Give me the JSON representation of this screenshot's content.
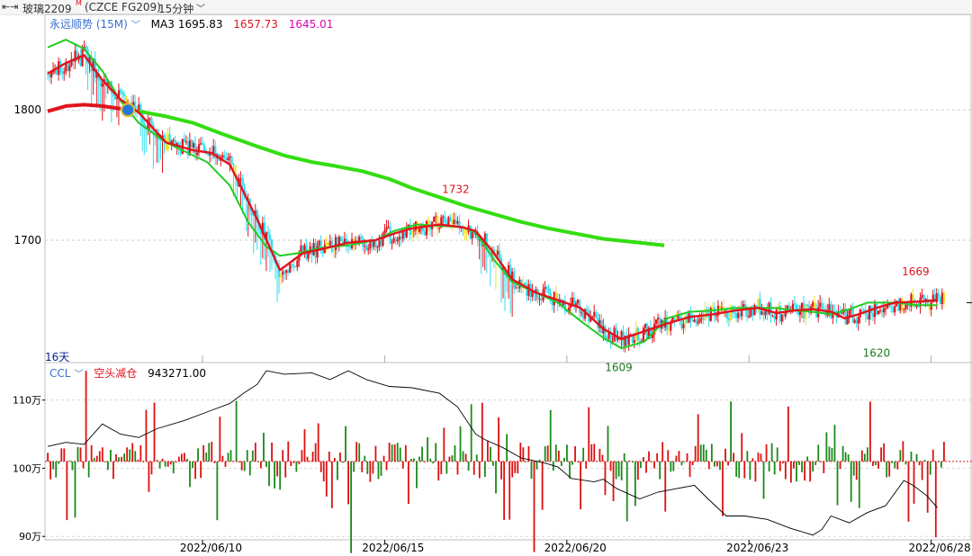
{
  "header": {
    "nav_icon": "collapse-arrows-icon",
    "symbol_name": "玻璃2209",
    "symbol_mark": "M",
    "symbol_code": "(CZCE FG209)",
    "period": "15分钟",
    "period_icon": "chevron-down-icon"
  },
  "main_legend": {
    "indicator": "永远顺势 (15M)",
    "indicator_icon": "chevron-down-icon",
    "ma3_label": "MA3",
    "ma3_value": "1695.83",
    "v2": "1657.73",
    "v3": "1645.01"
  },
  "sub_legend": {
    "indicator": "CCL",
    "indicator_icon": "chevron-down-icon",
    "state": "空头减仓",
    "value": "943271.00"
  },
  "days_label": "16天",
  "colors": {
    "bull_candle": "#e0141e",
    "bear_candle": "#33dcee",
    "neutral_candle": "#f2e12a",
    "ma_long": "#33dd11",
    "ma_fast": "#e0141e",
    "ma_mid": "#22cc22",
    "bar_up": "#dd1010",
    "bar_down": "#1a8a1a",
    "ccl_line": "#000000",
    "ma3_text": "#000000",
    "v2_text": "#e0141e",
    "v3_text": "#e000b4",
    "state_text": "#e0141e"
  },
  "chart_data": [
    {
      "type": "candlestick",
      "panel": "price",
      "ylim": [
        1606,
        1872
      ],
      "yticks": [
        1700,
        1800
      ],
      "ytick_labels": [
        "1700",
        "1800"
      ],
      "grid": "dashed-horizontal",
      "series_ma_long": [
        [
          0,
          1799
        ],
        [
          20,
          1803
        ],
        [
          40,
          1804
        ],
        [
          60,
          1803
        ],
        [
          80,
          1801
        ],
        [
          100,
          1799
        ],
        [
          130,
          1795
        ],
        [
          160,
          1790
        ],
        [
          190,
          1782
        ],
        [
          230,
          1772
        ],
        [
          260,
          1765
        ],
        [
          290,
          1760
        ],
        [
          315,
          1757
        ],
        [
          345,
          1753
        ],
        [
          375,
          1747
        ],
        [
          400,
          1740
        ],
        [
          430,
          1733
        ],
        [
          460,
          1726
        ],
        [
          490,
          1720
        ],
        [
          520,
          1714
        ],
        [
          550,
          1709
        ],
        [
          580,
          1705
        ],
        [
          610,
          1701
        ],
        [
          650,
          1698
        ],
        [
          677,
          1696
        ]
      ],
      "series_ma_mid": [
        [
          0,
          1848
        ],
        [
          20,
          1854
        ],
        [
          40,
          1847
        ],
        [
          60,
          1830
        ],
        [
          80,
          1807
        ],
        [
          100,
          1790
        ],
        [
          130,
          1775
        ],
        [
          160,
          1765
        ],
        [
          175,
          1760
        ],
        [
          200,
          1742
        ],
        [
          220,
          1714
        ],
        [
          240,
          1695
        ],
        [
          255,
          1688
        ],
        [
          275,
          1690
        ],
        [
          300,
          1694
        ],
        [
          330,
          1696
        ],
        [
          360,
          1700
        ],
        [
          380,
          1707
        ],
        [
          405,
          1712
        ],
        [
          430,
          1711
        ],
        [
          455,
          1710
        ],
        [
          470,
          1706
        ],
        [
          490,
          1685
        ],
        [
          510,
          1668
        ],
        [
          535,
          1660
        ],
        [
          560,
          1652
        ],
        [
          585,
          1638
        ],
        [
          610,
          1625
        ],
        [
          630,
          1617
        ],
        [
          655,
          1622
        ],
        [
          680,
          1640
        ],
        [
          705,
          1645
        ],
        [
          730,
          1646
        ],
        [
          755,
          1648
        ],
        [
          780,
          1648
        ],
        [
          800,
          1648
        ],
        [
          820,
          1646
        ],
        [
          840,
          1645
        ],
        [
          860,
          1643
        ],
        [
          880,
          1647
        ],
        [
          900,
          1652
        ],
        [
          930,
          1652
        ],
        [
          955,
          1650
        ],
        [
          977,
          1650
        ]
      ],
      "series_ma_fast": [
        [
          0,
          1828
        ],
        [
          20,
          1836
        ],
        [
          40,
          1842
        ],
        [
          60,
          1823
        ],
        [
          80,
          1808
        ],
        [
          100,
          1798
        ],
        [
          130,
          1775
        ],
        [
          160,
          1769
        ],
        [
          180,
          1767
        ],
        [
          200,
          1758
        ],
        [
          230,
          1716
        ],
        [
          255,
          1677
        ],
        [
          280,
          1690
        ],
        [
          300,
          1693
        ],
        [
          330,
          1698
        ],
        [
          360,
          1700
        ],
        [
          380,
          1705
        ],
        [
          400,
          1709
        ],
        [
          430,
          1712
        ],
        [
          455,
          1710
        ],
        [
          470,
          1707
        ],
        [
          490,
          1690
        ],
        [
          510,
          1670
        ],
        [
          535,
          1660
        ],
        [
          560,
          1654
        ],
        [
          585,
          1648
        ],
        [
          610,
          1632
        ],
        [
          630,
          1624
        ],
        [
          655,
          1630
        ],
        [
          680,
          1636
        ],
        [
          705,
          1641
        ],
        [
          730,
          1643
        ],
        [
          755,
          1646
        ],
        [
          780,
          1648
        ],
        [
          800,
          1644
        ],
        [
          820,
          1646
        ],
        [
          840,
          1647
        ],
        [
          860,
          1645
        ],
        [
          875,
          1640
        ],
        [
          890,
          1643
        ],
        [
          910,
          1648
        ],
        [
          930,
          1652
        ],
        [
          960,
          1653
        ],
        [
          977,
          1654
        ]
      ],
      "annotations": [
        {
          "text": "1732",
          "x": 448,
          "y": 1732,
          "color": "#e0141e"
        },
        {
          "text": "1609",
          "x": 627,
          "y": 1609,
          "color": "#1a7a1a"
        },
        {
          "text": "1620",
          "x": 910,
          "y": 1620,
          "color": "#1a7a1a"
        },
        {
          "text": "1669",
          "x": 953,
          "y": 1669,
          "color": "#e0141e"
        }
      ],
      "last_close": 1652
    },
    {
      "type": "bar+line",
      "panel": "ccl",
      "ylim": [
        89.5,
        115.5
      ],
      "yticks": [
        90,
        100,
        110
      ],
      "ytick_labels": [
        "90万",
        "100万",
        "110万"
      ],
      "baseline": 101,
      "baseline_style": "red-dotted",
      "ccl_line": [
        [
          0,
          103.2
        ],
        [
          20,
          103.8
        ],
        [
          40,
          103.5
        ],
        [
          60,
          106.5
        ],
        [
          80,
          105.0
        ],
        [
          100,
          104.5
        ],
        [
          120,
          105.8
        ],
        [
          150,
          107.0
        ],
        [
          180,
          108.5
        ],
        [
          200,
          109.5
        ],
        [
          215,
          111.0
        ],
        [
          230,
          112.3
        ],
        [
          240,
          114.3
        ],
        [
          260,
          113.8
        ],
        [
          290,
          114.0
        ],
        [
          310,
          113.0
        ],
        [
          330,
          114.3
        ],
        [
          350,
          113.0
        ],
        [
          375,
          112.0
        ],
        [
          400,
          111.8
        ],
        [
          430,
          111.0
        ],
        [
          450,
          109.0
        ],
        [
          470,
          105.0
        ],
        [
          480,
          104.2
        ],
        [
          500,
          103.0
        ],
        [
          520,
          101.5
        ],
        [
          545,
          100.8
        ],
        [
          560,
          100.2
        ],
        [
          575,
          98.5
        ],
        [
          600,
          98.0
        ],
        [
          610,
          98.4
        ],
        [
          625,
          97.0
        ],
        [
          650,
          95.5
        ],
        [
          670,
          96.5
        ],
        [
          690,
          97.0
        ],
        [
          710,
          97.5
        ],
        [
          725,
          95.5
        ],
        [
          745,
          93.0
        ],
        [
          765,
          93.0
        ],
        [
          790,
          92.5
        ],
        [
          815,
          91.2
        ],
        [
          840,
          90.2
        ],
        [
          850,
          91.0
        ],
        [
          860,
          93.0
        ],
        [
          880,
          92.0
        ],
        [
          900,
          93.5
        ],
        [
          920,
          94.5
        ],
        [
          940,
          98.2
        ],
        [
          950,
          97.5
        ],
        [
          965,
          96.0
        ],
        [
          977,
          94.2
        ]
      ]
    }
  ],
  "x_axis": {
    "tick_labels": [
      "2022/06/10",
      "2022/06/15",
      "2022/06/20",
      "2022/06/23",
      "2022/06/28"
    ],
    "tick_bars": [
      170,
      370,
      570,
      770,
      970
    ]
  }
}
